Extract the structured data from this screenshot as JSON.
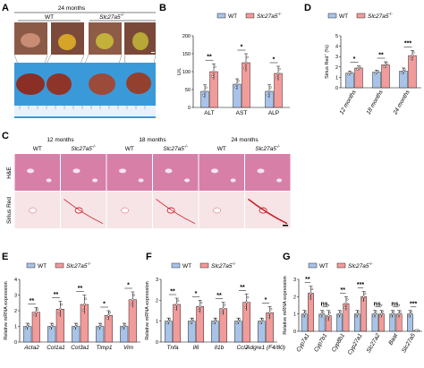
{
  "panels": {
    "A": {
      "label": "A",
      "header": "24 months",
      "groups": [
        "WT",
        "Slc27a5"
      ],
      "ko_superscript": "-/-"
    },
    "B": {
      "label": "B"
    },
    "C": {
      "label": "C",
      "timepoints": [
        "12 months",
        "18 months",
        "24 months"
      ],
      "genotypes": [
        "WT",
        "Slc27a5",
        "WT",
        "Slc27a5",
        "WT",
        "Slc27a5"
      ],
      "rows": [
        "H&E",
        "Sirius Red"
      ]
    },
    "D": {
      "label": "D"
    },
    "E": {
      "label": "E"
    },
    "F": {
      "label": "F"
    },
    "G": {
      "label": "G"
    }
  },
  "legend": {
    "wt": "WT",
    "ko": "Slc27a5",
    "ko_sup": "-/-"
  },
  "colors": {
    "wt": "#a9c3e8",
    "ko": "#f29b9b",
    "he_pink": "#d87fa8",
    "sirius_red": "#cc1f2a"
  },
  "chart_data": [
    {
      "panel": "B",
      "type": "bar",
      "ylabel": "U/L",
      "ylim": [
        0,
        200
      ],
      "yticks": [
        0,
        50,
        100,
        150,
        200
      ],
      "categories": [
        "ALT",
        "AST",
        "ALP"
      ],
      "series": [
        {
          "name": "WT",
          "values": [
            45,
            65,
            45
          ],
          "errors": [
            18,
            15,
            18
          ]
        },
        {
          "name": "Slc27a5",
          "values": [
            100,
            125,
            95
          ],
          "errors": [
            22,
            25,
            20
          ]
        }
      ],
      "significance": [
        "**",
        "*",
        "*"
      ]
    },
    {
      "panel": "D",
      "type": "bar",
      "ylabel": "Sirius Red",
      "ylabel_sup": "+",
      "ylabel_suffix": " (%)",
      "ylim": [
        0,
        5
      ],
      "yticks": [
        0,
        1,
        2,
        3,
        4,
        5
      ],
      "categories": [
        "12 months",
        "18 months",
        "24 months"
      ],
      "series": [
        {
          "name": "WT",
          "values": [
            1.4,
            1.5,
            1.6
          ],
          "errors": [
            0.2,
            0.2,
            0.3
          ]
        },
        {
          "name": "Slc27a5",
          "values": [
            1.9,
            2.2,
            3.1
          ],
          "errors": [
            0.2,
            0.3,
            0.5
          ]
        }
      ],
      "significance": [
        "*",
        "**",
        "***"
      ]
    },
    {
      "panel": "E",
      "type": "bar",
      "ylabel": "Relative mRNA expression",
      "ylim": [
        0,
        4
      ],
      "yticks": [
        0,
        1,
        2,
        3,
        4
      ],
      "categories": [
        "Acta2",
        "Col1a1",
        "Col3a1",
        "Timp1",
        "Vim"
      ],
      "series": [
        {
          "name": "WT",
          "values": [
            1.0,
            1.0,
            1.0,
            1.0,
            1.0
          ],
          "errors": [
            0.2,
            0.2,
            0.2,
            0.2,
            0.2
          ]
        },
        {
          "name": "Slc27a5",
          "values": [
            1.9,
            2.1,
            2.4,
            1.7,
            2.7
          ],
          "errors": [
            0.3,
            0.5,
            0.6,
            0.3,
            0.5
          ]
        }
      ],
      "significance": [
        "**",
        "**",
        "**",
        "*",
        "*"
      ]
    },
    {
      "panel": "F",
      "type": "bar",
      "ylabel": "Relative mRNA expression",
      "ylim": [
        0,
        3
      ],
      "yticks": [
        0,
        1,
        2,
        3
      ],
      "categories": [
        "Tnfa",
        "Il6",
        "Il1b",
        "Ccl2",
        "Adgre1 (F4/80)"
      ],
      "series": [
        {
          "name": "WT",
          "values": [
            1.0,
            1.0,
            1.0,
            1.0,
            1.0
          ],
          "errors": [
            0.15,
            0.15,
            0.15,
            0.15,
            0.15
          ]
        },
        {
          "name": "Slc27a5",
          "values": [
            1.8,
            1.7,
            1.6,
            1.9,
            1.4
          ],
          "errors": [
            0.3,
            0.3,
            0.3,
            0.4,
            0.3
          ]
        }
      ],
      "significance": [
        "**",
        "*",
        "**",
        "**",
        "*"
      ]
    },
    {
      "panel": "G",
      "type": "bar",
      "ylabel": "Relative mRNA expression",
      "ylim": [
        0,
        3
      ],
      "yticks": [
        0,
        1,
        2,
        3
      ],
      "categories": [
        "Cyp7a1",
        "Cyp7b1",
        "Cyp8b1",
        "Cyp27a1",
        "Slc27a2",
        "Baat",
        "Slc27a5"
      ],
      "series": [
        {
          "name": "WT",
          "values": [
            1.0,
            1.0,
            1.0,
            1.0,
            1.0,
            1.0,
            1.0
          ],
          "errors": [
            0.2,
            0.2,
            0.2,
            0.2,
            0.2,
            0.2,
            0.2
          ]
        },
        {
          "name": "Slc27a5",
          "values": [
            2.2,
            0.9,
            1.6,
            2.0,
            1.0,
            1.0,
            0.05
          ],
          "errors": [
            0.4,
            0.3,
            0.4,
            0.3,
            0.2,
            0.2,
            0.02
          ]
        }
      ],
      "significance": [
        "**",
        "ns.",
        "**",
        "***",
        "ns.",
        "ns.",
        "***"
      ]
    }
  ]
}
